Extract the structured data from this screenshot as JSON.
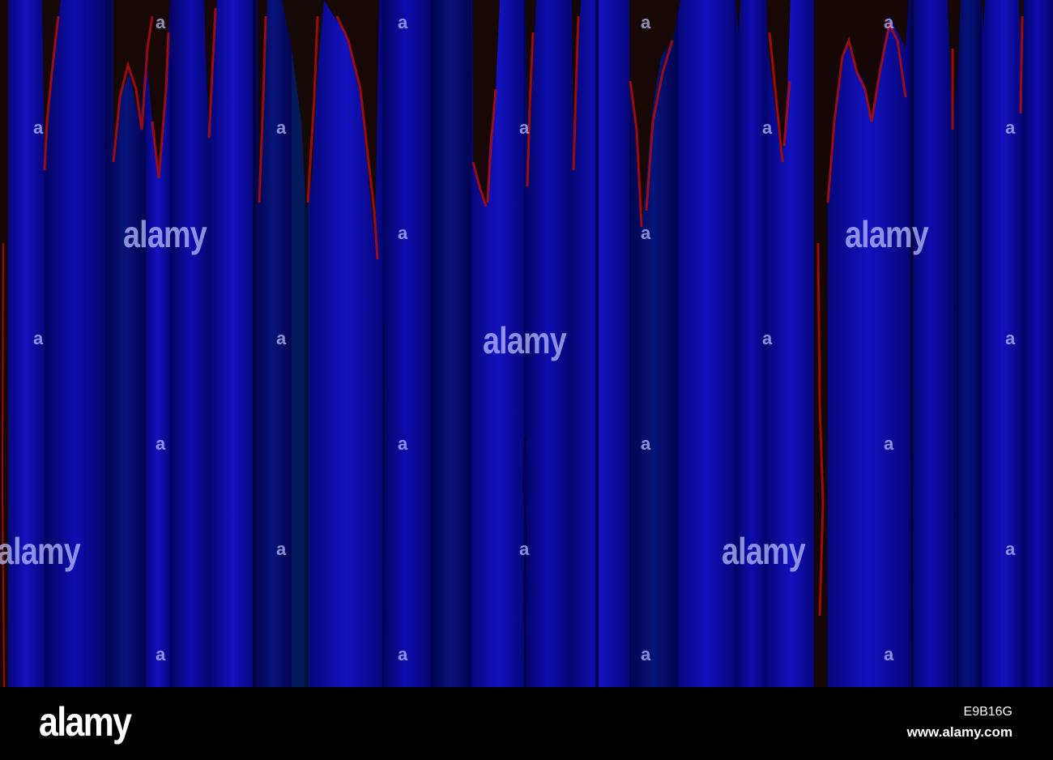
{
  "image": {
    "subject": "abstract-streaks",
    "colors": {
      "base_blue": "#0a0aa8",
      "deep_blue": "#040470",
      "shadow": "#160a05",
      "red_edge": "#b01010",
      "watermark": "#bec3ff"
    }
  },
  "watermark": {
    "brand": "alamy",
    "mark": "a"
  },
  "footer": {
    "logo": "alamy",
    "image_id": "E9B16G",
    "url": "www.alamy.com"
  }
}
